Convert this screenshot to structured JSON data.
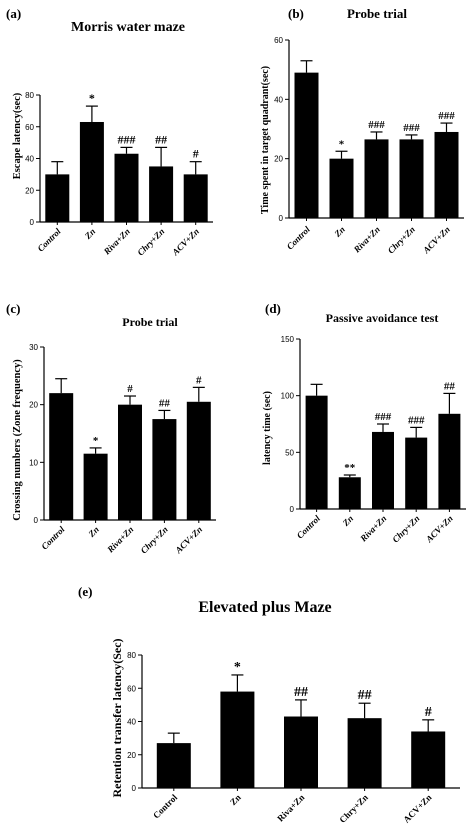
{
  "chart_data": [
    {
      "panel": "(a)",
      "type": "bar",
      "title": "Morris water maze",
      "xlabel": "",
      "ylabel": "Escape latency(sec)",
      "ylim": [
        0,
        80
      ],
      "yticks": [
        0,
        20,
        40,
        60,
        80
      ],
      "categories": [
        "Control",
        "Zn",
        "Riva+Zn",
        "Chry+Zn",
        "ACV+Zn"
      ],
      "values": [
        30,
        63,
        43,
        35,
        30
      ],
      "errors": [
        8,
        10,
        4,
        12,
        8
      ],
      "annotations": [
        "",
        "*",
        "###",
        "##",
        "#"
      ],
      "bar_color": "#000000"
    },
    {
      "panel": "(b)",
      "type": "bar",
      "title": "Probe trial",
      "xlabel": "",
      "ylabel": "Time spent in target quadrant(sec)",
      "ylim": [
        0,
        60
      ],
      "yticks": [
        0,
        20,
        40,
        60
      ],
      "categories": [
        "Control",
        "Zn",
        "Riva+Zn",
        "Chry+Zn",
        "ACV+Zn"
      ],
      "values": [
        49,
        20,
        26.5,
        26.5,
        29
      ],
      "errors": [
        4,
        2.5,
        2.5,
        1.5,
        3
      ],
      "annotations": [
        "",
        "*",
        "###",
        "###",
        "###"
      ],
      "bar_color": "#000000"
    },
    {
      "panel": "(c)",
      "type": "bar",
      "title": "Probe trial",
      "xlabel": "",
      "ylabel": "Crossing numbers (Zone frequency)",
      "ylim": [
        0,
        30
      ],
      "yticks": [
        0,
        10,
        20,
        30
      ],
      "categories": [
        "Control",
        "Zn",
        "Riva+Zn",
        "Chry+Zn",
        "ACV+Zn"
      ],
      "values": [
        22,
        11.5,
        20,
        17.5,
        20.5
      ],
      "errors": [
        2.5,
        1,
        1.5,
        1.5,
        2.5
      ],
      "annotations": [
        "",
        "*",
        "#",
        "##",
        "#"
      ],
      "bar_color": "#000000"
    },
    {
      "panel": "(d)",
      "type": "bar",
      "title": "Passive avoidance test",
      "xlabel": "",
      "ylabel": "latency time (sec)",
      "ylim": [
        0,
        150
      ],
      "yticks": [
        0,
        50,
        100,
        150
      ],
      "categories": [
        "Control",
        "Zn",
        "Riva+Zn",
        "Chry+Zn",
        "ACV+Zn"
      ],
      "values": [
        100,
        28,
        68,
        63,
        84
      ],
      "errors": [
        10,
        2,
        7,
        9,
        18
      ],
      "annotations": [
        "",
        "**",
        "###",
        "###",
        "##"
      ],
      "bar_color": "#000000"
    },
    {
      "panel": "(e)",
      "type": "bar",
      "title": "Elevated plus Maze",
      "xlabel": "",
      "ylabel": "Retention transfer latency(Sec)",
      "ylim": [
        0,
        80
      ],
      "yticks": [
        0,
        20,
        40,
        60,
        80
      ],
      "categories": [
        "Control",
        "Zn",
        "Riva+Zn",
        "Chry+Zn",
        "ACV+Zn"
      ],
      "values": [
        27,
        58,
        43,
        42,
        34
      ],
      "errors": [
        6,
        10,
        10,
        9,
        7
      ],
      "annotations": [
        "",
        "*",
        "##",
        "##",
        "#"
      ],
      "bar_color": "#000000"
    }
  ]
}
